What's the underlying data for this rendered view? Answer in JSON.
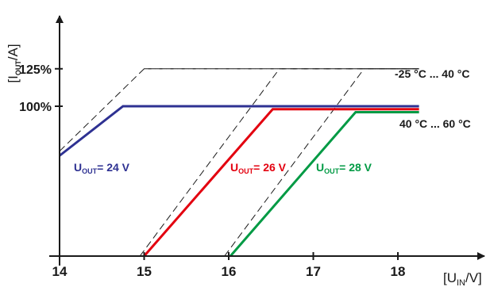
{
  "chart_data": {
    "type": "line",
    "xlabel": {
      "main": "[U",
      "sub": "IN",
      "tail": "/V]"
    },
    "ylabel": {
      "main": "[I",
      "sub": "OUT",
      "tail": "/A]"
    },
    "xlim": [
      14,
      18.3
    ],
    "ylim": [
      0,
      125
    ],
    "x_ticks": [
      "14",
      "15",
      "16",
      "17",
      "18"
    ],
    "y_ticks": [
      {
        "value": 125,
        "label": "125%"
      },
      {
        "value": 100,
        "label": "100%"
      }
    ],
    "range_labels": [
      "-25 °C ... 40 °C",
      "40 °C ... 60 °C"
    ],
    "series": [
      {
        "name": {
          "main": "U",
          "sub": "OUT",
          "tail": "= 24 V"
        },
        "color": "#2e3192",
        "points": [
          [
            14,
            67
          ],
          [
            14.75,
            100
          ],
          [
            18.25,
            100
          ]
        ],
        "derating_envelope": [
          [
            14,
            70
          ],
          [
            15.0,
            125
          ],
          [
            18.25,
            125
          ]
        ]
      },
      {
        "name": {
          "main": "U",
          "sub": "OUT",
          "tail": "= 26 V"
        },
        "color": "#e3000f",
        "points": [
          [
            15.0,
            0
          ],
          [
            16.52,
            98
          ],
          [
            18.25,
            98
          ]
        ],
        "derating_envelope": [
          [
            14.95,
            0
          ],
          [
            16.6,
            125
          ],
          [
            18.25,
            125
          ]
        ]
      },
      {
        "name": {
          "main": "U",
          "sub": "OUT",
          "tail": "= 28 V"
        },
        "color": "#009a44",
        "points": [
          [
            16.02,
            0
          ],
          [
            17.5,
            96
          ],
          [
            18.25,
            96
          ]
        ],
        "derating_envelope": [
          [
            15.95,
            0
          ],
          [
            17.6,
            125
          ],
          [
            18.25,
            125
          ]
        ]
      }
    ],
    "grid": false
  },
  "colors": {
    "axis": "#1a1a1a",
    "reference_line": "#1a1a1a",
    "envelope": "#1a1a1a"
  }
}
